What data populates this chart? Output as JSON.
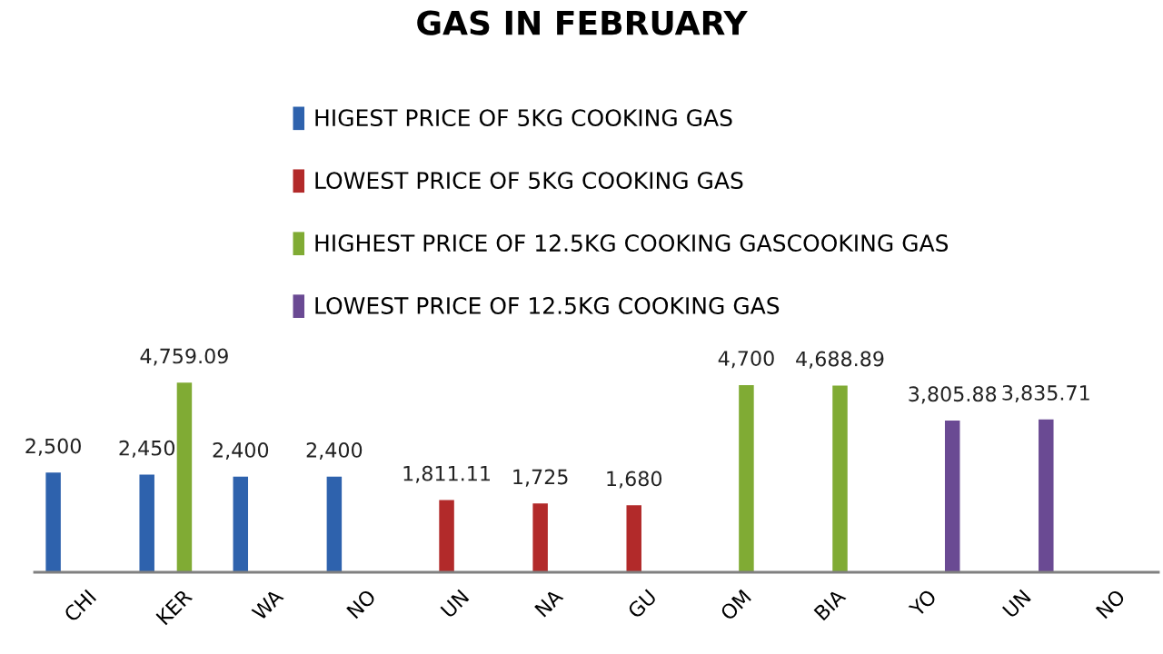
{
  "chart_data": {
    "type": "bar",
    "title": "GAS IN FEBRUARY",
    "categories": [
      "CHI",
      "KER",
      "WA",
      "NO",
      "UN",
      "NA",
      "GU",
      "OM",
      "BIA",
      "YO",
      "UN",
      "NO"
    ],
    "series": [
      {
        "name": "HIGEST PRICE OF 5KG COOKING GAS",
        "color": "#2e62ad",
        "values": [
          2500,
          2450,
          2400,
          2400,
          null,
          null,
          null,
          null,
          null,
          null,
          null,
          null
        ],
        "value_labels": [
          "2,500",
          "2,450",
          "2,400",
          "2,400",
          null,
          null,
          null,
          null,
          null,
          null,
          null,
          null
        ]
      },
      {
        "name": "LOWEST PRICE OF 5KG COOKING GAS",
        "color": "#b22a2a",
        "values": [
          null,
          null,
          null,
          null,
          1811.11,
          1725,
          1680,
          null,
          null,
          null,
          null,
          null
        ],
        "value_labels": [
          null,
          null,
          null,
          null,
          "1,811.11",
          "1,725",
          "1,680",
          null,
          null,
          null,
          null,
          null
        ]
      },
      {
        "name": "HIGHEST PRICE OF 12.5KG COOKING GASCOOKING GAS",
        "color": "#80ab34",
        "values": [
          null,
          4759.09,
          null,
          null,
          null,
          null,
          null,
          4700,
          4688.89,
          null,
          null,
          null
        ],
        "value_labels": [
          null,
          "4,759.09",
          null,
          null,
          null,
          null,
          null,
          "4,700",
          "4,688.89",
          null,
          null,
          null
        ]
      },
      {
        "name": "LOWEST PRICE OF 12.5KG COOKING GAS",
        "color": "#6a4a93",
        "values": [
          null,
          null,
          null,
          null,
          null,
          null,
          null,
          null,
          null,
          3805.88,
          3835.71,
          null
        ],
        "value_labels": [
          null,
          null,
          null,
          null,
          null,
          null,
          null,
          null,
          null,
          "3,805.88",
          "3,835.71",
          null
        ]
      }
    ],
    "legend": "top",
    "grid": false
  }
}
